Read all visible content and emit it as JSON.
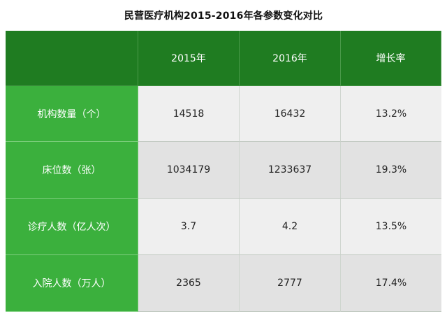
{
  "chart_data": {
    "type": "table",
    "title": "民营医疗机构2015-2016年各参数变化对比",
    "columns": [
      "",
      "2015年",
      "2016年",
      "增长率"
    ],
    "rows": [
      {
        "label": "机构数量（个）",
        "values": [
          "14518",
          "16432",
          "13.2%"
        ]
      },
      {
        "label": "床位数（张）",
        "values": [
          "1034179",
          "1233637",
          "19.3%"
        ]
      },
      {
        "label": "诊疗人数（亿人次）",
        "values": [
          "3.7",
          "4.2",
          "13.5%"
        ]
      },
      {
        "label": "入院人数（万人）",
        "values": [
          "2365",
          "2777",
          "17.4%"
        ]
      }
    ]
  },
  "colors": {
    "header_bg": "#1f7c21",
    "row_label_bg": "#3bb03d",
    "cell_light": "#efefef",
    "cell_dark": "#e2e2e2"
  }
}
